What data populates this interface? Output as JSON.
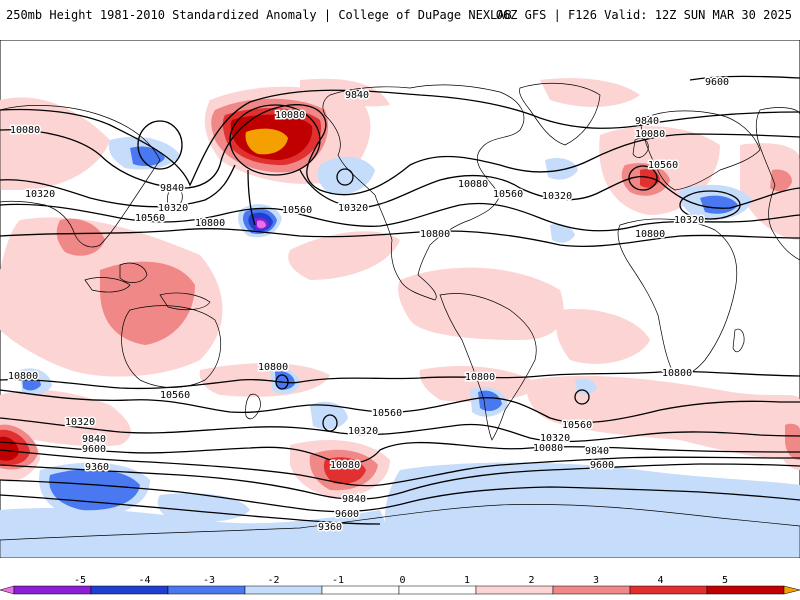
{
  "header": {
    "left": "250mb Height 1981-2010 Standardized Anomaly | College of DuPage NEXLAB",
    "right": "06Z GFS | F126 Valid: 12Z SUN MAR 30 2025"
  },
  "colors": {
    "neg5": "#e873e8",
    "neg4": "#8a1fd6",
    "neg3": "#1f3fd0",
    "neg2": "#4a78f0",
    "neg1": "#c6dcfb",
    "pos1": "#fcd4d4",
    "pos2": "#f08888",
    "pos3": "#e03030",
    "pos4": "#c00000",
    "pos5": "#f4a000",
    "contour": "#000000",
    "coast": "#000000"
  },
  "colorbar": {
    "ticks": [
      "-5",
      "-4",
      "-3",
      "-2",
      "-1",
      "0",
      "1",
      "2",
      "3",
      "4",
      "5"
    ]
  },
  "contour_labels": [
    {
      "id": "c1",
      "text": "9840"
    },
    {
      "id": "c2",
      "text": "9600"
    },
    {
      "id": "c3",
      "text": "10080"
    },
    {
      "id": "c4",
      "text": "10080"
    },
    {
      "id": "c5",
      "text": "9840"
    },
    {
      "id": "c6",
      "text": "10080"
    },
    {
      "id": "c7",
      "text": "10320"
    },
    {
      "id": "c8",
      "text": "9840"
    },
    {
      "id": "c9",
      "text": "10320"
    },
    {
      "id": "c10",
      "text": "10560"
    },
    {
      "id": "c11",
      "text": "10800"
    },
    {
      "id": "c12",
      "text": "10560"
    },
    {
      "id": "c13",
      "text": "10320"
    },
    {
      "id": "c14",
      "text": "10560"
    },
    {
      "id": "c15",
      "text": "10800"
    },
    {
      "id": "c16",
      "text": "10080"
    },
    {
      "id": "c17",
      "text": "10560"
    },
    {
      "id": "c18",
      "text": "10320"
    },
    {
      "id": "c19",
      "text": "10320"
    },
    {
      "id": "c20",
      "text": "10800"
    },
    {
      "id": "c21",
      "text": "10800"
    },
    {
      "id": "c22",
      "text": "10800"
    },
    {
      "id": "c23",
      "text": "10800"
    },
    {
      "id": "c24",
      "text": "10800"
    },
    {
      "id": "c25",
      "text": "10560"
    },
    {
      "id": "c26",
      "text": "10560"
    },
    {
      "id": "c27",
      "text": "10560"
    },
    {
      "id": "c28",
      "text": "10320"
    },
    {
      "id": "c29",
      "text": "10320"
    },
    {
      "id": "c30",
      "text": "10320"
    },
    {
      "id": "c31",
      "text": "9840"
    },
    {
      "id": "c32",
      "text": "9600"
    },
    {
      "id": "c33",
      "text": "9360"
    },
    {
      "id": "c34",
      "text": "10080"
    },
    {
      "id": "c35",
      "text": "10080"
    },
    {
      "id": "c36",
      "text": "9840"
    },
    {
      "id": "c37",
      "text": "9600"
    },
    {
      "id": "c38",
      "text": "9600"
    },
    {
      "id": "c39",
      "text": "9840"
    },
    {
      "id": "c40",
      "text": "9360"
    }
  ]
}
